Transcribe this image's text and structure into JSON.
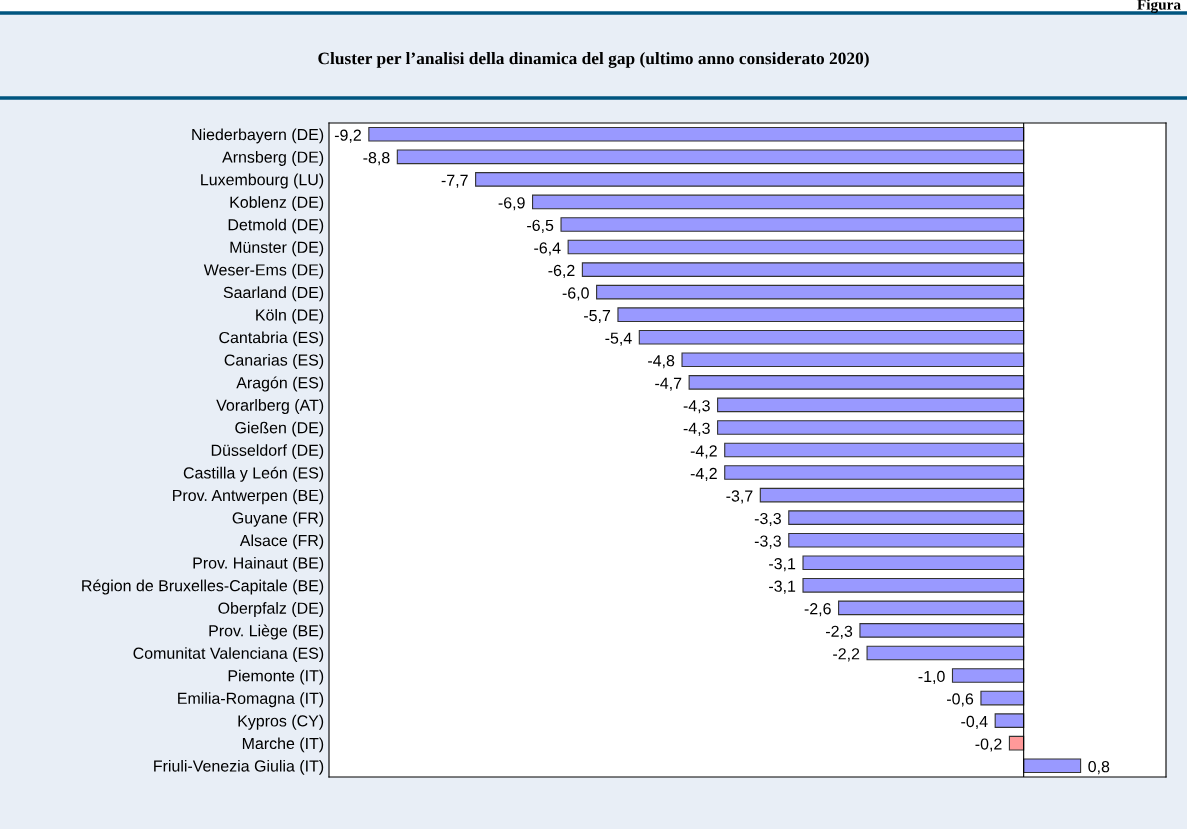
{
  "chart_data": {
    "type": "bar",
    "orientation": "horizontal",
    "title": "Cluster per l’analisi della dinamica del gap (ultimo anno considerato 2020)",
    "annotations": [
      "Figura"
    ],
    "categories": [
      "Niederbayern (DE)",
      "Arnsberg (DE)",
      "Luxembourg (LU)",
      "Koblenz (DE)",
      "Detmold (DE)",
      "Münster (DE)",
      "Weser-Ems (DE)",
      "Saarland (DE)",
      "Köln (DE)",
      "Cantabria (ES)",
      "Canarias (ES)",
      "Aragón (ES)",
      "Vorarlberg (AT)",
      "Gießen (DE)",
      "Düsseldorf (DE)",
      "Castilla y León (ES)",
      "Prov. Antwerpen (BE)",
      "Guyane (FR)",
      "Alsace (FR)",
      "Prov. Hainaut (BE)",
      "Région de Bruxelles-Capitale (BE)",
      "Oberpfalz (DE)",
      "Prov. Liège (BE)",
      "Comunitat Valenciana (ES)",
      "Piemonte (IT)",
      "Emilia-Romagna (IT)",
      "Kypros (CY)",
      "Marche (IT)",
      "Friuli-Venezia Giulia (IT)"
    ],
    "values": [
      -9.2,
      -8.8,
      -7.7,
      -6.9,
      -6.5,
      -6.4,
      -6.2,
      -6.0,
      -5.7,
      -5.4,
      -4.8,
      -4.7,
      -4.3,
      -4.3,
      -4.2,
      -4.2,
      -3.7,
      -3.3,
      -3.3,
      -3.1,
      -3.1,
      -2.6,
      -2.3,
      -2.2,
      -1.0,
      -0.6,
      -0.4,
      -0.2,
      0.8
    ],
    "value_labels": [
      "-9,2",
      "-8,8",
      "-7,7",
      "-6,9",
      "-6,5",
      "-6,4",
      "-6,2",
      "-6,0",
      "-5,7",
      "-5,4",
      "-4,8",
      "-4,7",
      "-4,3",
      "-4,3",
      "-4,2",
      "-4,2",
      "-3,7",
      "-3,3",
      "-3,3",
      "-3,1",
      "-3,1",
      "-2,6",
      "-2,3",
      "-2,2",
      "-1,0",
      "-0,6",
      "-0,4",
      "-0,2",
      "0,8"
    ],
    "colors": [
      "#9999ff",
      "#9999ff",
      "#9999ff",
      "#9999ff",
      "#9999ff",
      "#9999ff",
      "#9999ff",
      "#9999ff",
      "#9999ff",
      "#9999ff",
      "#9999ff",
      "#9999ff",
      "#9999ff",
      "#9999ff",
      "#9999ff",
      "#9999ff",
      "#9999ff",
      "#9999ff",
      "#9999ff",
      "#9999ff",
      "#9999ff",
      "#9999ff",
      "#9999ff",
      "#9999ff",
      "#9999ff",
      "#9999ff",
      "#9999ff",
      "#ff9999",
      "#9999ff"
    ]
  }
}
